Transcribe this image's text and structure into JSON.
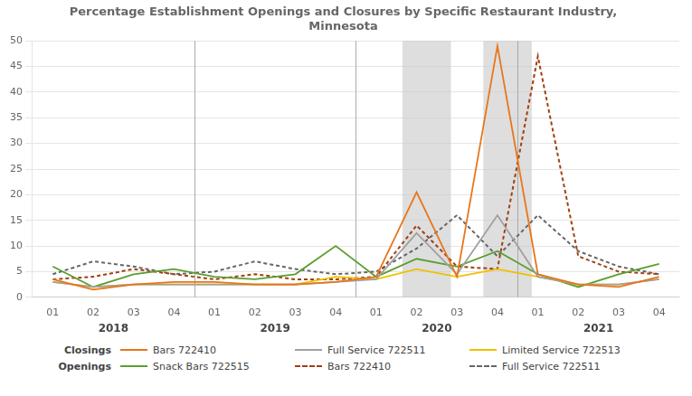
{
  "chart_data": {
    "type": "line",
    "title": "Percentage Establishment Openings and Closures by Specific Restaurant Industry,\nMinnesota",
    "categories": [
      "01",
      "02",
      "03",
      "04",
      "01",
      "02",
      "03",
      "04",
      "01",
      "02",
      "03",
      "04",
      "01",
      "02",
      "03",
      "04"
    ],
    "series": [
      {
        "name": "Bars 722410",
        "color": "#E8761A",
        "line_style": "solid",
        "values": [
          3.5,
          1.5,
          2.5,
          3.0,
          3.0,
          2.5,
          2.5,
          3.0,
          4.0,
          20.5,
          4.0,
          49.0,
          4.5,
          2.5,
          2.0,
          4.0
        ]
      },
      {
        "name": "Full Service 722511",
        "color": "#A0A0A0",
        "line_style": "solid",
        "values": [
          3.0,
          2.0,
          2.5,
          2.5,
          2.5,
          2.5,
          2.5,
          3.0,
          3.5,
          12.5,
          4.5,
          16.0,
          4.0,
          2.5,
          2.5,
          3.5
        ]
      },
      {
        "name": "Limited Service 722513",
        "color": "#F0C000",
        "line_style": "solid",
        "values": [
          3.0,
          2.0,
          2.5,
          2.5,
          2.5,
          2.5,
          2.5,
          4.0,
          3.5,
          5.5,
          4.0,
          5.5,
          4.0,
          2.5,
          2.5,
          3.5
        ]
      },
      {
        "name": "Snack Bars 722515",
        "color": "#5C9E2E",
        "line_style": "solid",
        "values": [
          6.0,
          2.0,
          4.5,
          5.5,
          4.0,
          3.5,
          4.5,
          10.0,
          4.0,
          7.5,
          6.0,
          9.0,
          4.5,
          2.0,
          4.5,
          6.5
        ]
      },
      {
        "name": "Bars 722410",
        "color": "#A04010",
        "line_style": "dotted",
        "values": [
          3.5,
          4.0,
          5.5,
          4.5,
          3.5,
          4.5,
          3.5,
          3.5,
          4.0,
          14.0,
          6.0,
          5.5,
          47.0,
          8.0,
          5.0,
          4.5
        ]
      },
      {
        "name": "Full Service 722511",
        "color": "#666666",
        "line_style": "dotted",
        "values": [
          4.5,
          7.0,
          6.0,
          4.5,
          5.0,
          7.0,
          5.5,
          4.5,
          5.0,
          9.5,
          16.0,
          8.0,
          16.0,
          9.0,
          6.0,
          4.5
        ]
      }
    ],
    "legend_groups": [
      "Closings",
      "Openings"
    ],
    "annotations": [
      {
        "text": "2018",
        "x": 1.5
      },
      {
        "text": "2019",
        "x": 5.5
      },
      {
        "text": "2020",
        "x": 9.5
      },
      {
        "text": "2021",
        "x": 13.5
      }
    ],
    "year_boundaries": [
      3.5,
      7.5,
      11.5
    ],
    "shaded_regions": [
      [
        8.65,
        9.85
      ],
      [
        10.65,
        11.85
      ]
    ],
    "ylim": [
      0,
      50
    ],
    "yticks": [
      0,
      5,
      10,
      15,
      20,
      25,
      30,
      35,
      40,
      45,
      50
    ],
    "grid": true,
    "legend": "bottom"
  }
}
